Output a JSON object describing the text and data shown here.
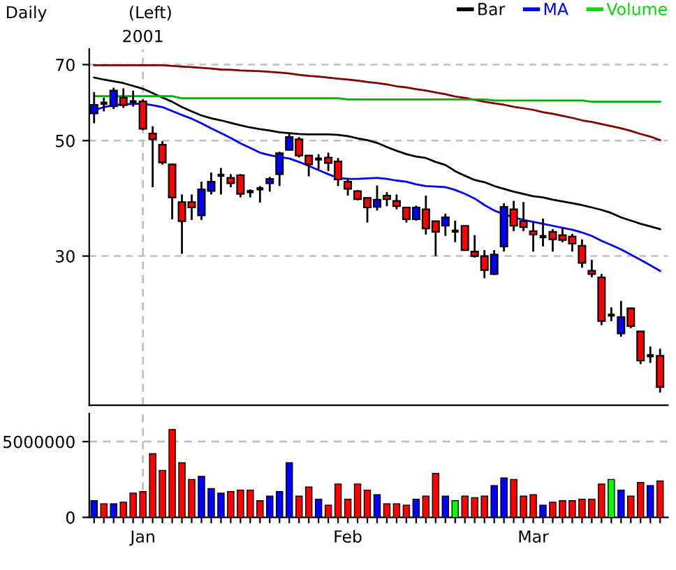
{
  "chart_data": [
    {
      "type": "candlestick",
      "title": "Daily",
      "subtitle": "(Left)",
      "categories": [
        null,
        null,
        null,
        null,
        null,
        "Jan",
        null,
        null,
        null,
        null,
        null,
        null,
        null,
        null,
        null,
        null,
        null,
        null,
        null,
        null,
        null,
        null,
        null,
        null,
        null,
        null,
        "Feb",
        null,
        null,
        null,
        null,
        null,
        null,
        null,
        null,
        null,
        null,
        null,
        null,
        null,
        null,
        null,
        null,
        null,
        null,
        "Mar",
        null,
        null,
        null,
        null,
        null,
        null,
        null,
        null,
        null,
        null,
        null,
        null,
        null
      ],
      "series": [
        {
          "type": "candlestick",
          "name": "Bar",
          "color": "#000000",
          "ohlc": [
            [
              56.4,
              62,
              54,
              58.6
            ],
            [
              59,
              60.5,
              56.9,
              59
            ],
            [
              58.2,
              63.2,
              57.5,
              62.4
            ],
            [
              60.5,
              63,
              57.8,
              58.5
            ],
            [
              59.4,
              62.4,
              58.1,
              59.4
            ],
            [
              59.5,
              60,
              52.4,
              52.7
            ],
            [
              51.6,
              53.3,
              40.7,
              50.3
            ],
            [
              49.1,
              49.9,
              45,
              45.4
            ],
            [
              45,
              45.2,
              35.3,
              38.9
            ],
            [
              38.1,
              39.4,
              30.3,
              35
            ],
            [
              38.1,
              39.4,
              35.2,
              37.2
            ],
            [
              35.9,
              41.7,
              35.2,
              40.3
            ],
            [
              40,
              43.4,
              39.4,
              41.7
            ],
            [
              42.9,
              44.3,
              39.4,
              42.9
            ],
            [
              42.4,
              43.1,
              40.7,
              41.4
            ],
            [
              42.9,
              43.1,
              38.9,
              39.5
            ],
            [
              39.9,
              40.3,
              38.9,
              39.9
            ],
            [
              40.4,
              40.9,
              38,
              40.4
            ],
            [
              41.4,
              42.6,
              39.9,
              42.2
            ],
            [
              43.1,
              47.6,
              40.9,
              47.3
            ],
            [
              48,
              51.6,
              47.9,
              50.8
            ],
            [
              50.3,
              50.8,
              46.4,
              46.8
            ],
            [
              46.8,
              46.8,
              42.7,
              45
            ],
            [
              46.1,
              47.1,
              44.1,
              46.1
            ],
            [
              46.4,
              47.4,
              43.7,
              45.3
            ],
            [
              45.6,
              46.3,
              40.9,
              42.1
            ],
            [
              41.7,
              42.4,
              39.2,
              40.4
            ],
            [
              40,
              40.2,
              38.4,
              38.6
            ],
            [
              38.8,
              38.9,
              34.8,
              37.2
            ],
            [
              37.3,
              41,
              36.7,
              38.5
            ],
            [
              39.2,
              39.8,
              37.4,
              38.6
            ],
            [
              38.3,
              39.4,
              36.9,
              37.4
            ],
            [
              37.2,
              37.3,
              34.8,
              35.3
            ],
            [
              35.3,
              37.5,
              35.1,
              37.2
            ],
            [
              36.9,
              39.2,
              33,
              33.9
            ],
            [
              35,
              35,
              30,
              33.4
            ],
            [
              34.3,
              36.2,
              32.8,
              35.6
            ],
            [
              33.5,
              35.1,
              31.9,
              33.5
            ],
            [
              34.3,
              34.3,
              30.7,
              30.8
            ],
            [
              30.6,
              32.9,
              29.8,
              30
            ],
            [
              30,
              30.8,
              27.2,
              28.2
            ],
            [
              27.7,
              30.8,
              27.6,
              30.2
            ],
            [
              31.3,
              37.9,
              30.6,
              37.3
            ],
            [
              36.9,
              38.3,
              33.5,
              34.3
            ],
            [
              35,
              38.1,
              33.5,
              34.1
            ],
            [
              33.5,
              35,
              30.6,
              33
            ],
            [
              32.7,
              35.4,
              31.3,
              32.7
            ],
            [
              33.4,
              33.8,
              30.6,
              32.3
            ],
            [
              32.9,
              34,
              31.9,
              32.2
            ],
            [
              32.7,
              33.1,
              30.6,
              31.7
            ],
            [
              31.4,
              32.3,
              28.5,
              29.1
            ],
            [
              28.1,
              29.5,
              27.3,
              27.7
            ],
            [
              27.3,
              27.7,
              22.1,
              22.5
            ],
            [
              23.1,
              23.9,
              22.5,
              23.1
            ],
            [
              21.3,
              24.6,
              21,
              22.9
            ],
            [
              23.8,
              23.9,
              21.8,
              22
            ],
            [
              21.5,
              21.5,
              18.6,
              18.9
            ],
            [
              19.3,
              20.1,
              18.7,
              19.3
            ],
            [
              19.3,
              19.9,
              16.4,
              16.8
            ]
          ],
          "colors": [
            "#0000ff",
            "#000000",
            "#0000ff",
            "#ff0000",
            "#000000",
            "#ff0000",
            "#ff0000",
            "#ff0000",
            "#ff0000",
            "#ff0000",
            "#ff0000",
            "#0000ff",
            "#0000ff",
            "#000000",
            "#ff0000",
            "#ff0000",
            "#000000",
            "#000000",
            "#0000ff",
            "#0000ff",
            "#0000ff",
            "#ff0000",
            "#ff0000",
            "#000000",
            "#ff0000",
            "#ff0000",
            "#ff0000",
            "#ff0000",
            "#ff0000",
            "#0000ff",
            "#ff0000",
            "#ff0000",
            "#ff0000",
            "#0000ff",
            "#ff0000",
            "#ff0000",
            "#0000ff",
            "#000000",
            "#ff0000",
            "#ff0000",
            "#ff0000",
            "#0000ff",
            "#0000ff",
            "#ff0000",
            "#ff0000",
            "#ff0000",
            "#000000",
            "#ff0000",
            "#ff0000",
            "#ff0000",
            "#ff0000",
            "#ff0000",
            "#ff0000",
            "#000000",
            "#0000ff",
            "#ff0000",
            "#ff0000",
            "#000000",
            "#ff0000"
          ]
        },
        {
          "type": "line",
          "name": "MA",
          "color": "#0000ff",
          "values": [
            57.2,
            58.0,
            58.5,
            58.7,
            58.8,
            58.9,
            58.5,
            58.0,
            57.0,
            56.0,
            55.1,
            54.0,
            52.8,
            51.7,
            50.6,
            49.4,
            48.4,
            47.4,
            46.9,
            46.5,
            46.2,
            45.5,
            44.7,
            43.9,
            43.1,
            42.4,
            42.2,
            42.2,
            42.3,
            42.4,
            42.2,
            41.9,
            41.7,
            41.2,
            40.9,
            40.8,
            40.7,
            40.2,
            39.5,
            38.7,
            37.6,
            36.7,
            36.1,
            35.6,
            35.2,
            34.9,
            34.6,
            34.3,
            34.0,
            33.7,
            33.3,
            32.8,
            32.1,
            31.5,
            30.9,
            30.2,
            29.5,
            28.8,
            28.1
          ]
        },
        {
          "type": "line",
          "color": "#000000",
          "values": [
            66.1,
            65.5,
            65.0,
            64.5,
            63.7,
            62.9,
            61.7,
            60.5,
            59.4,
            58.0,
            56.9,
            55.9,
            55.2,
            54.7,
            54.1,
            53.5,
            53.0,
            52.6,
            52.3,
            51.9,
            51.7,
            51.5,
            51.4,
            51.4,
            51.4,
            51.3,
            51.0,
            50.5,
            50.1,
            49.5,
            48.6,
            47.8,
            47.1,
            46.6,
            46.3,
            45.5,
            44.9,
            43.7,
            42.8,
            42.0,
            41.6,
            40.9,
            40.4,
            39.9,
            39.5,
            39.1,
            38.9,
            38.5,
            38.2,
            37.9,
            37.6,
            37.2,
            36.8,
            36.3,
            35.6,
            35.1,
            34.6,
            34.2,
            33.8
          ]
        },
        {
          "type": "line",
          "color": "#800000",
          "values": [
            69.8,
            69.8,
            69.8,
            69.8,
            69.8,
            69.8,
            69.8,
            69.8,
            69.6,
            69.4,
            69.2,
            69.0,
            68.8,
            68.5,
            68.4,
            68.2,
            68.1,
            68.0,
            67.8,
            67.6,
            67.3,
            66.9,
            66.6,
            66.4,
            66.1,
            65.8,
            65.5,
            65.2,
            64.8,
            64.5,
            64.1,
            63.6,
            63.3,
            62.8,
            62.4,
            61.9,
            61.4,
            60.8,
            60.4,
            59.9,
            59.4,
            59.0,
            58.6,
            58.1,
            57.7,
            57.3,
            56.7,
            56.3,
            55.8,
            55.3,
            54.7,
            54.3,
            53.8,
            53.3,
            52.8,
            52.2,
            51.5,
            50.9,
            50.1
          ]
        },
        {
          "type": "line",
          "color": "#00b000",
          "values": [
            60.9,
            60.9,
            60.9,
            60.9,
            60.9,
            60.9,
            60.9,
            60.9,
            60.9,
            60.3,
            60.3,
            60.3,
            60.3,
            60.3,
            60.3,
            60.3,
            60.3,
            60.3,
            60.3,
            60.3,
            60.3,
            60.3,
            60.3,
            60.3,
            60.3,
            60.3,
            60.0,
            60.0,
            60.0,
            60.0,
            60.0,
            60.0,
            60.0,
            60.0,
            60.0,
            60.0,
            60.0,
            60.0,
            60.0,
            60.0,
            60.0,
            59.7,
            59.7,
            59.7,
            59.7,
            59.7,
            59.7,
            59.7,
            59.7,
            59.7,
            59.7,
            59.4,
            59.4,
            59.4,
            59.4,
            59.4,
            59.4,
            59.4,
            59.4
          ]
        }
      ],
      "log": true,
      "ylim": [
        15.5,
        75
      ],
      "yticks": [
        30,
        50,
        70
      ],
      "grid": "y",
      "tick_labels": "y",
      "legend": "top right",
      "line_style": "solid",
      "marker": "none",
      "ref_lines": [
        {
          "axis": "x",
          "value": "Jan",
          "label": "2001",
          "color": "#c0c0c0",
          "line_style": "dashed"
        }
      ]
    },
    {
      "type": "bar",
      "categories": [
        null,
        null,
        null,
        null,
        null,
        "Jan",
        null,
        null,
        null,
        null,
        null,
        null,
        null,
        null,
        null,
        null,
        null,
        null,
        null,
        null,
        null,
        null,
        null,
        null,
        null,
        null,
        "Feb",
        null,
        null,
        null,
        null,
        null,
        null,
        null,
        null,
        null,
        null,
        null,
        null,
        null,
        null,
        null,
        null,
        null,
        null,
        "Mar",
        null,
        null,
        null,
        null,
        null,
        null,
        null,
        null,
        null,
        null,
        null,
        null,
        null
      ],
      "series": [
        {
          "name": "Volume",
          "color": "#00dd00",
          "values": [
            1100000,
            900000,
            900000,
            1000000,
            1600000,
            1700000,
            4200000,
            3100000,
            5800000,
            3600000,
            2500000,
            2700000,
            1900000,
            1600000,
            1700000,
            1800000,
            1800000,
            1100000,
            1400000,
            1700000,
            3600000,
            1400000,
            2000000,
            1200000,
            800000,
            2200000,
            1200000,
            2200000,
            1800000,
            1500000,
            900000,
            900000,
            800000,
            1200000,
            1400000,
            2900000,
            1400000,
            1100000,
            1400000,
            1300000,
            1400000,
            2100000,
            2600000,
            2500000,
            1400000,
            1500000,
            800000,
            1000000,
            1100000,
            1100000,
            1200000,
            1200000,
            2200000,
            2500000,
            1800000,
            1400000,
            2300000,
            2100000,
            2400000
          ],
          "colors": [
            "#0000ff",
            "#ff0000",
            "#0000ff",
            "#ff0000",
            "#ff0000",
            "#ff0000",
            "#ff0000",
            "#ff0000",
            "#ff0000",
            "#ff0000",
            "#ff0000",
            "#0000ff",
            "#0000ff",
            "#0000ff",
            "#ff0000",
            "#ff0000",
            "#ff0000",
            "#ff0000",
            "#0000ff",
            "#0000ff",
            "#0000ff",
            "#ff0000",
            "#ff0000",
            "#0000ff",
            "#ff0000",
            "#ff0000",
            "#ff0000",
            "#ff0000",
            "#ff0000",
            "#0000ff",
            "#ff0000",
            "#ff0000",
            "#ff0000",
            "#0000ff",
            "#ff0000",
            "#ff0000",
            "#0000ff",
            "#00ff00",
            "#ff0000",
            "#ff0000",
            "#ff0000",
            "#0000ff",
            "#0000ff",
            "#ff0000",
            "#ff0000",
            "#ff0000",
            "#0000ff",
            "#ff0000",
            "#ff0000",
            "#ff0000",
            "#ff0000",
            "#ff0000",
            "#ff0000",
            "#00ff00",
            "#0000ff",
            "#ff0000",
            "#ff0000",
            "#0000ff",
            "#ff0000"
          ]
        }
      ],
      "ylim": [
        0,
        6850000
      ],
      "yticks": [
        0,
        5000000
      ],
      "ref_lines": [
        {
          "axis": "x",
          "value": "Jan",
          "color": "#c0c0c0",
          "line_style": "dashed"
        },
        {
          "axis": "y",
          "value": 5000000,
          "color": "#c0c0c0",
          "line_style": "dashed"
        }
      ]
    }
  ]
}
